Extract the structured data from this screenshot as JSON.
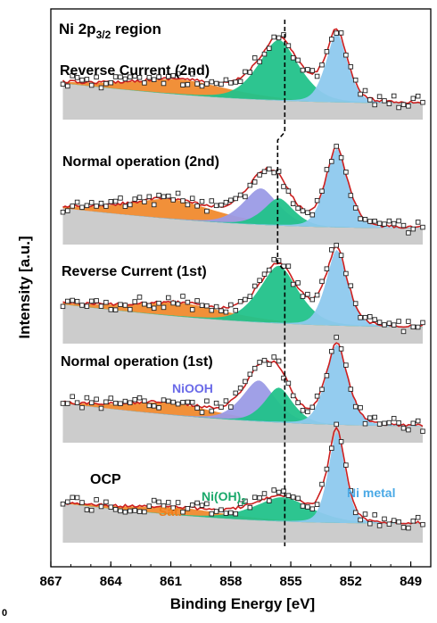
{
  "chart_data": {
    "type": "line",
    "title_main": "Ni 2p",
    "title_sub": "3/2",
    "title_tail": " region",
    "xlabel": "Binding Energy [eV]",
    "ylabel": "Intensity [a.u.]",
    "xlim": [
      867,
      848
    ],
    "x_reversed": true,
    "xticks": [
      867,
      864,
      861,
      858,
      855,
      852,
      849
    ],
    "corner_fragment": "0",
    "reference_line_x": 855.3,
    "grid": false,
    "component_colors": {
      "sat": "#f08a2e",
      "niooh": "#9b9be6",
      "nioh2": "#22c28a",
      "ni_metal": "#8ec9ee",
      "background": "#c7c7c7",
      "envelope": "#cc1f1f",
      "reference_line": "#000000"
    },
    "peak_labels": [
      {
        "text_main": "NiOOH",
        "text_sub": "",
        "color": "#6a6ae8"
      },
      {
        "text_main": "Sat.",
        "text_sub": "",
        "color": "#ef7d1a"
      },
      {
        "text_main": "Ni(OH)",
        "text_sub": "2",
        "color": "#19a86a"
      },
      {
        "text_main": "Ni metal",
        "text_sub": "",
        "color": "#4aa9e6"
      }
    ],
    "series": [
      {
        "name": "Reverse Current (2nd)",
        "bg": [
          0.2,
          0.16,
          0.06
        ],
        "components": [
          {
            "type": "sat",
            "center": 860.5,
            "width": 2.8,
            "height": 0.1
          },
          {
            "type": "nioh2",
            "center": 855.6,
            "width": 1.15,
            "height": 0.4
          },
          {
            "type": "ni_metal",
            "center": 852.7,
            "width": 0.6,
            "height": 0.46
          }
        ]
      },
      {
        "name": "Normal operation (2nd)",
        "bg": [
          0.2,
          0.16,
          0.06
        ],
        "components": [
          {
            "type": "sat",
            "center": 861.0,
            "width": 2.5,
            "height": 0.13
          },
          {
            "type": "niooh",
            "center": 856.5,
            "width": 1.0,
            "height": 0.24
          },
          {
            "type": "nioh2",
            "center": 855.6,
            "width": 0.85,
            "height": 0.18
          },
          {
            "type": "ni_metal",
            "center": 852.7,
            "width": 0.62,
            "height": 0.52
          }
        ]
      },
      {
        "name": "Reverse Current (1st)",
        "bg": [
          0.22,
          0.16,
          0.06
        ],
        "components": [
          {
            "type": "sat",
            "center": 860.5,
            "width": 2.8,
            "height": 0.09
          },
          {
            "type": "nioh2",
            "center": 855.6,
            "width": 1.1,
            "height": 0.38
          },
          {
            "type": "ni_metal",
            "center": 852.7,
            "width": 0.6,
            "height": 0.5
          }
        ]
      },
      {
        "name": "Normal operation (1st)",
        "bg": [
          0.22,
          0.16,
          0.06
        ],
        "components": [
          {
            "type": "sat",
            "center": 861.0,
            "width": 2.5,
            "height": 0.08
          },
          {
            "type": "niooh",
            "center": 856.6,
            "width": 0.95,
            "height": 0.27
          },
          {
            "type": "nioh2",
            "center": 855.6,
            "width": 0.8,
            "height": 0.23
          },
          {
            "type": "ni_metal",
            "center": 852.7,
            "width": 0.62,
            "height": 0.53
          }
        ]
      },
      {
        "name": "OCP",
        "bg": [
          0.22,
          0.18,
          0.08
        ],
        "components": [
          {
            "type": "sat",
            "center": 860.5,
            "width": 2.8,
            "height": 0.05
          },
          {
            "type": "nioh2",
            "center": 855.4,
            "width": 1.6,
            "height": 0.16
          },
          {
            "type": "ni_metal",
            "center": 852.7,
            "width": 0.48,
            "height": 0.6
          }
        ]
      }
    ]
  }
}
